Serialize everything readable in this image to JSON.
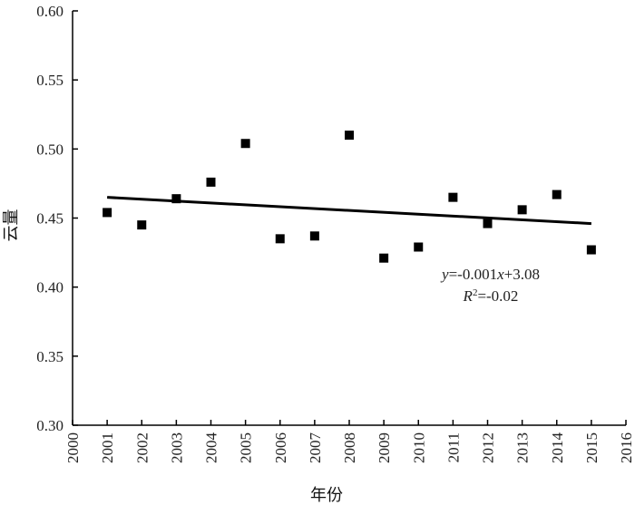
{
  "chart_data": {
    "type": "scatter",
    "xlabel": "年份",
    "ylabel": "云量",
    "xlim": [
      2000,
      2016
    ],
    "ylim": [
      0.3,
      0.6
    ],
    "x_ticks": [
      "2000",
      "2001",
      "2002",
      "2003",
      "2004",
      "2005",
      "2006",
      "2007",
      "2008",
      "2009",
      "2010",
      "2011",
      "2012",
      "2013",
      "2014",
      "2015",
      "2016"
    ],
    "y_ticks": [
      "0.30",
      "0.35",
      "0.40",
      "0.45",
      "0.50",
      "0.55",
      "0.60"
    ],
    "grid": false,
    "series": [
      {
        "x": [
          2001,
          2002,
          2003,
          2004,
          2005,
          2006,
          2007,
          2008,
          2009,
          2010,
          2011,
          2012,
          2013,
          2014,
          2015
        ],
        "y": [
          0.454,
          0.445,
          0.464,
          0.476,
          0.504,
          0.435,
          0.437,
          0.51,
          0.421,
          0.429,
          0.465,
          0.446,
          0.456,
          0.467,
          0.427
        ]
      }
    ],
    "trendline": {
      "x": [
        2001,
        2015
      ],
      "y": [
        0.465,
        0.446
      ]
    },
    "annotation": {
      "eq_y": "y",
      "eq_mid": "=-0.001",
      "eq_x": "x",
      "eq_tail": "+3.08",
      "r2_R": "R",
      "r2_sup": "2",
      "r2_tail": "=-0.02"
    }
  }
}
